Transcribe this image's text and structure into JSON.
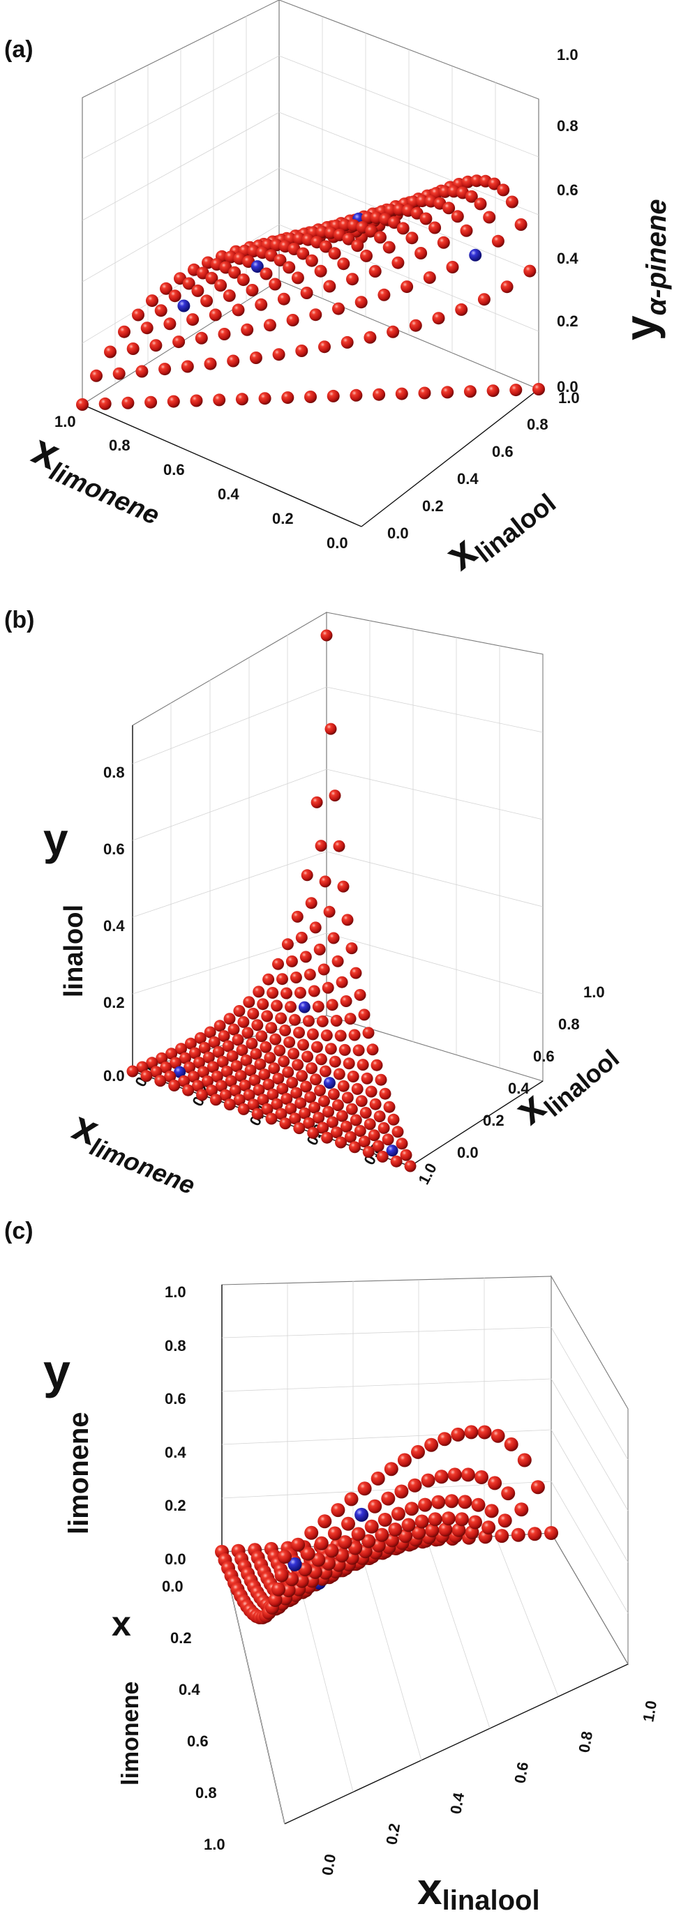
{
  "chart_data": [
    {
      "panel": "(a)",
      "type": "scatter3d",
      "axes": {
        "x": {
          "main": "x",
          "sub": "limonene",
          "range": [
            0,
            1
          ],
          "ticks": [
            "0.0",
            "0.2",
            "0.4",
            "0.6",
            "0.8",
            "1.0"
          ]
        },
        "y": {
          "main": "x",
          "sub": "linalool",
          "range": [
            0,
            1
          ],
          "ticks": [
            "0.0",
            "0.2",
            "0.4",
            "0.6",
            "0.8",
            "1.0"
          ]
        },
        "z": {
          "main": "y",
          "sub": "α-pinene",
          "range": [
            0,
            1
          ],
          "ticks": [
            "0.0",
            "0.2",
            "0.4",
            "0.6",
            "0.8",
            "1.0"
          ]
        }
      },
      "grid_step": 0.05,
      "relation": "y_alpha_pinene computed vs x_alpha_pinene = 1 - x_limonene - x_linalool",
      "highlight_points": [
        {
          "x_limonene": 0.1,
          "x_linalool": 0.8
        },
        {
          "x_limonene": 0.5,
          "x_linalool": 0.2
        },
        {
          "x_limonene": 0.2,
          "x_linalool": 0.3
        },
        {
          "x_limonene": 0.7,
          "x_linalool": 0.1
        }
      ],
      "colors": {
        "points": "#d42020",
        "highlight": "#2020b8"
      }
    },
    {
      "panel": "(b)",
      "type": "scatter3d",
      "axes": {
        "x": {
          "main": "x",
          "sub": "limonene",
          "range": [
            0,
            1
          ],
          "ticks": [
            "0.0",
            "0.2",
            "0.4",
            "0.6",
            "0.8",
            "1.0"
          ]
        },
        "y": {
          "main": "x",
          "sub": "linalool",
          "range": [
            0,
            1
          ],
          "ticks": [
            "0.0",
            "0.2",
            "0.4",
            "0.6",
            "0.8",
            "1.0"
          ]
        },
        "z": {
          "main": "y",
          "sub": "linalool",
          "range": [
            0,
            0.9
          ],
          "ticks": [
            "0.0",
            "0.2",
            "0.4",
            "0.6",
            "0.8"
          ]
        }
      },
      "grid_step": 0.05,
      "relation": "y_linalool computed vs x_linalool",
      "highlight_points": [
        {
          "x_limonene": 0.1,
          "x_linalool": 0.1
        },
        {
          "x_limonene": 0.5,
          "x_linalool": 0.3
        },
        {
          "x_limonene": 0.2,
          "x_linalool": 0.6
        },
        {
          "x_limonene": 0.9,
          "x_linalool": 0.05
        }
      ],
      "colors": {
        "points": "#d42020",
        "highlight": "#2020b8"
      }
    },
    {
      "panel": "(c)",
      "type": "scatter3d",
      "axes": {
        "x": {
          "main": "x",
          "sub": "linalool",
          "range": [
            0,
            1
          ],
          "ticks": [
            "0.0",
            "0.2",
            "0.4",
            "0.6",
            "0.8",
            "1.0"
          ]
        },
        "y": {
          "main": "x",
          "sub": "limonene",
          "range": [
            0,
            1
          ],
          "ticks": [
            "0.0",
            "0.2",
            "0.4",
            "0.6",
            "0.8",
            "1.0"
          ]
        },
        "z": {
          "main": "y",
          "sub": "limonene",
          "range": [
            0,
            1
          ],
          "ticks": [
            "0.0",
            "0.2",
            "0.4",
            "0.6",
            "0.8",
            "1.0"
          ]
        }
      },
      "grid_step": 0.05,
      "relation": "y_limonene computed vs x_limonene",
      "highlight_points": [
        {
          "x_limonene": 0.9,
          "x_linalool": 0.05
        },
        {
          "x_limonene": 0.5,
          "x_linalool": 0.2
        },
        {
          "x_limonene": 0.65,
          "x_linalool": 0.3
        },
        {
          "x_limonene": 0.4,
          "x_linalool": 0.1
        }
      ],
      "colors": {
        "points": "#d42020",
        "highlight": "#2020b8"
      }
    }
  ]
}
